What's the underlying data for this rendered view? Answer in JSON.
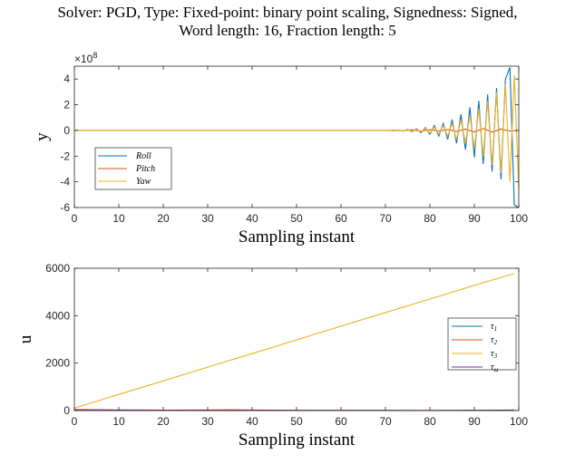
{
  "title": {
    "line1": "Solver: PGD, Type: Fixed-point: binary point scaling, Signedness: Signed,",
    "line2": "Word length: 16, Fraction length: 5"
  },
  "colors": {
    "blue": "#0072bd",
    "orange": "#d95319",
    "yellow": "#edb120",
    "purple": "#7e2f8e"
  },
  "chart_data": [
    {
      "type": "line",
      "xlabel": "Sampling instant",
      "ylabel": "y",
      "exponent_label": "×10",
      "exponent_power": "8",
      "xlim": [
        0,
        100
      ],
      "ylim": [
        -6,
        5
      ],
      "ylim_units_note": "values in units of 1e8",
      "xticks": [
        0,
        10,
        20,
        30,
        40,
        50,
        60,
        70,
        80,
        90,
        100
      ],
      "yticks": [
        -6,
        -4,
        -2,
        0,
        2,
        4
      ],
      "legend_position": "lower-left",
      "series": [
        {
          "name": "Roll",
          "color": "blue",
          "x": [
            0,
            70,
            71,
            72,
            73,
            74,
            75,
            76,
            77,
            78,
            79,
            80,
            81,
            82,
            83,
            84,
            85,
            86,
            87,
            88,
            89,
            90,
            91,
            92,
            93,
            94,
            95,
            96,
            97,
            98,
            99,
            100
          ],
          "y": [
            0,
            0,
            0,
            -0.02,
            0.03,
            -0.05,
            0.08,
            -0.1,
            0.13,
            -0.18,
            0.22,
            -0.3,
            0.38,
            -0.45,
            0.55,
            -0.7,
            0.85,
            -1.0,
            1.25,
            -1.5,
            1.8,
            -2.1,
            2.3,
            -2.6,
            2.8,
            -3.2,
            3.3,
            -3.8,
            4.0,
            4.9,
            -5.8,
            -6.0
          ]
        },
        {
          "name": "Pitch",
          "color": "orange",
          "x": [
            0,
            70,
            72,
            74,
            76,
            78,
            80,
            82,
            84,
            86,
            88,
            90,
            92,
            94,
            96,
            98,
            100
          ],
          "y": [
            0,
            0,
            0.02,
            -0.03,
            0.05,
            -0.05,
            0.06,
            -0.05,
            0.07,
            -0.08,
            0.1,
            -0.12,
            0.15,
            -0.12,
            0.1,
            -0.05,
            0
          ]
        },
        {
          "name": "Yaw",
          "color": "yellow",
          "x": [
            0,
            70,
            71,
            72,
            73,
            74,
            75,
            76,
            77,
            78,
            79,
            80,
            81,
            82,
            83,
            84,
            85,
            86,
            87,
            88,
            89,
            90,
            91,
            92,
            93,
            94,
            95,
            96,
            97,
            98,
            99,
            100
          ],
          "y": [
            0,
            0,
            0.01,
            -0.02,
            0.03,
            -0.04,
            0.06,
            -0.08,
            0.1,
            -0.12,
            0.16,
            -0.2,
            0.25,
            -0.3,
            0.38,
            -0.45,
            0.55,
            -0.7,
            0.85,
            -1.0,
            1.2,
            -1.45,
            1.7,
            -2.0,
            2.3,
            -2.7,
            3.0,
            -3.3,
            3.6,
            -4.0,
            4.3,
            -4.6
          ]
        }
      ]
    },
    {
      "type": "line",
      "xlabel": "Sampling instant",
      "ylabel": "u",
      "xlim": [
        0,
        100
      ],
      "ylim": [
        0,
        6000
      ],
      "xticks": [
        0,
        10,
        20,
        30,
        40,
        50,
        60,
        70,
        80,
        90,
        100
      ],
      "yticks": [
        0,
        2000,
        4000,
        6000
      ],
      "legend_position": "right",
      "series": [
        {
          "name": "τ1",
          "label_main": "τ",
          "label_sub": "1",
          "color": "blue",
          "x": [
            0,
            10,
            20,
            30,
            40,
            50,
            60,
            70,
            80,
            90,
            99
          ],
          "y": [
            30,
            20,
            15,
            5,
            10,
            5,
            0,
            5,
            0,
            10,
            20
          ]
        },
        {
          "name": "τ2",
          "label_main": "τ",
          "label_sub": "2",
          "color": "orange",
          "x": [
            0,
            5,
            10,
            20,
            30,
            35,
            40,
            50,
            60,
            70,
            80,
            90,
            99
          ],
          "y": [
            40,
            30,
            20,
            15,
            20,
            30,
            20,
            10,
            10,
            5,
            5,
            5,
            5
          ]
        },
        {
          "name": "τ3",
          "label_main": "τ",
          "label_sub": "3",
          "color": "yellow",
          "x": [
            0,
            10,
            20,
            30,
            40,
            50,
            60,
            70,
            80,
            90,
            99
          ],
          "y": [
            100,
            680,
            1250,
            1830,
            2400,
            2980,
            3560,
            4130,
            4700,
            5280,
            5780
          ]
        },
        {
          "name": "τω",
          "label_main": "τ",
          "label_sub": "ω",
          "color": "purple",
          "x": [
            0,
            10,
            20,
            30,
            40,
            50,
            60,
            70,
            80,
            90,
            99
          ],
          "y": [
            20,
            15,
            10,
            10,
            10,
            5,
            5,
            5,
            5,
            5,
            5
          ]
        }
      ]
    }
  ]
}
